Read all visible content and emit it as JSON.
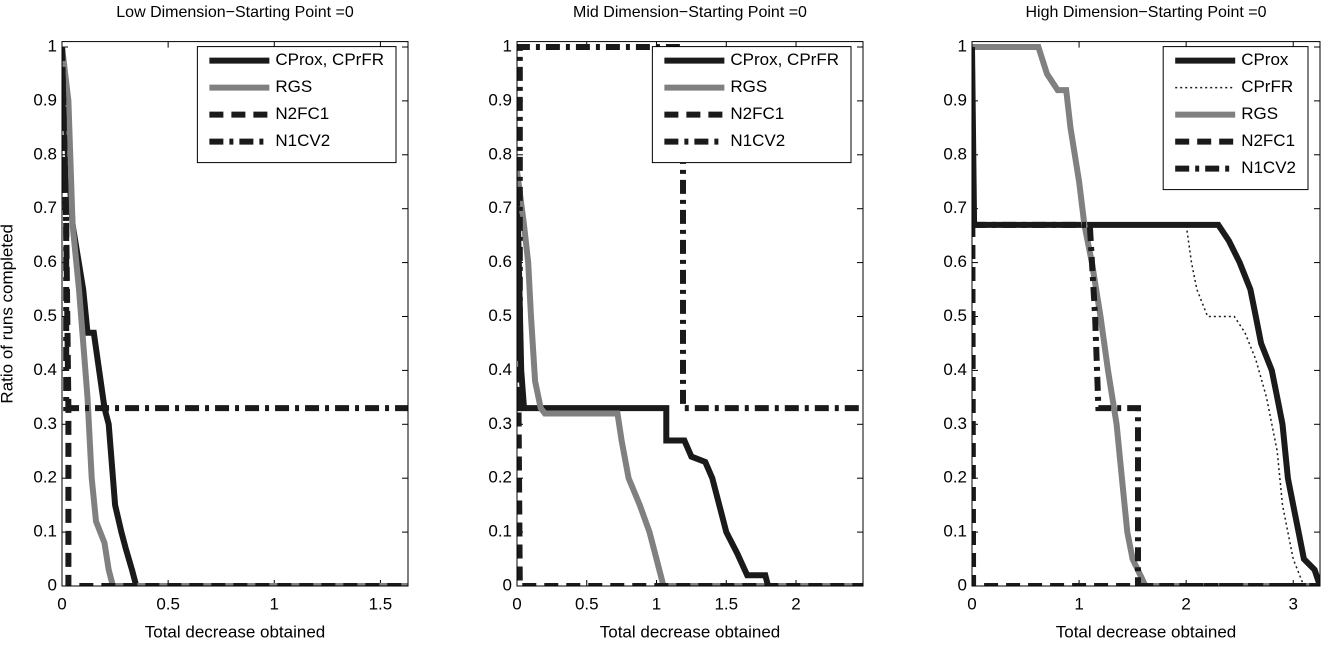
{
  "chart_data": [
    {
      "type": "line",
      "title": "Low Dimension−Starting Point =0",
      "xlabel": "Total decrease obtained",
      "ylabel": "Ratio of runs completed",
      "xlim": [
        0,
        1.63
      ],
      "ylim": [
        0,
        1.01
      ],
      "xticks": [
        0,
        0.5,
        1,
        1.5
      ],
      "yticks": [
        0,
        0.1,
        0.2,
        0.3,
        0.4,
        0.5,
        0.6,
        0.7,
        0.8,
        0.9,
        1
      ],
      "legend": "upper right",
      "series": [
        {
          "name": "CProx, CPrFR",
          "color": "#1a1a1a",
          "style": "solid",
          "x": [
            0,
            0.02,
            0.05,
            0.1,
            0.12,
            0.15,
            0.2,
            0.22,
            0.25,
            0.28,
            0.3,
            0.33,
            0.35,
            1.63
          ],
          "values": [
            1,
            0.85,
            0.67,
            0.55,
            0.47,
            0.47,
            0.33,
            0.3,
            0.15,
            0.1,
            0.07,
            0.03,
            0,
            0
          ]
        },
        {
          "name": "RGS",
          "color": "#808080",
          "style": "solid",
          "x": [
            0,
            0.03,
            0.05,
            0.08,
            0.12,
            0.14,
            0.16,
            0.2,
            0.22,
            0.24,
            1.63
          ],
          "values": [
            1,
            0.9,
            0.67,
            0.55,
            0.35,
            0.2,
            0.12,
            0.08,
            0.03,
            0,
            0
          ]
        },
        {
          "name": "N2FC1",
          "color": "#1a1a1a",
          "style": "dash",
          "x": [
            0,
            0.02,
            0.03,
            0.03,
            1.63
          ],
          "values": [
            1,
            0.67,
            0.33,
            0,
            0
          ]
        },
        {
          "name": "N1CV2",
          "color": "#1a1a1a",
          "style": "dashdot",
          "x": [
            0,
            0.02,
            0.02,
            1.63
          ],
          "values": [
            1,
            0.67,
            0.33,
            0.33
          ]
        }
      ]
    },
    {
      "type": "line",
      "title": "Mid Dimension−Starting Point =0",
      "xlabel": "Total decrease obtained",
      "xlim": [
        0,
        2.48
      ],
      "ylim": [
        0,
        1.01
      ],
      "xticks": [
        0,
        0.5,
        1,
        1.5,
        2
      ],
      "yticks": [
        0,
        0.1,
        0.2,
        0.3,
        0.4,
        0.5,
        0.6,
        0.7,
        0.8,
        0.9,
        1
      ],
      "legend": "upper right",
      "series": [
        {
          "name": "CProx, CPrFR",
          "color": "#1a1a1a",
          "style": "solid",
          "x": [
            0,
            0.03,
            0.05,
            1.07,
            1.07,
            1.2,
            1.25,
            1.35,
            1.4,
            1.45,
            1.5,
            1.58,
            1.65,
            1.78,
            1.8,
            2.48
          ],
          "values": [
            0.75,
            0.4,
            0.33,
            0.33,
            0.27,
            0.27,
            0.24,
            0.23,
            0.2,
            0.15,
            0.1,
            0.06,
            0.02,
            0.02,
            0,
            0
          ]
        },
        {
          "name": "RGS",
          "color": "#808080",
          "style": "solid",
          "x": [
            0,
            0.05,
            0.08,
            0.1,
            0.13,
            0.17,
            0.2,
            0.72,
            0.75,
            0.8,
            0.88,
            0.95,
            1.0,
            1.05,
            2.48
          ],
          "values": [
            0.77,
            0.67,
            0.6,
            0.5,
            0.38,
            0.33,
            0.32,
            0.32,
            0.27,
            0.2,
            0.15,
            0.1,
            0.05,
            0,
            0
          ]
        },
        {
          "name": "N2FC1",
          "color": "#1a1a1a",
          "style": "dash",
          "x": [
            0,
            0.02,
            2.48
          ],
          "values": [
            0.73,
            0,
            0
          ]
        },
        {
          "name": "N1CV2",
          "color": "#1a1a1a",
          "style": "dashdot",
          "x": [
            0,
            0.02,
            0.02,
            1.19,
            1.19,
            2.48
          ],
          "values": [
            0.33,
            0.33,
            1,
            1,
            0.33,
            0.33
          ]
        }
      ]
    },
    {
      "type": "line",
      "title": "High Dimension−Starting Point =0",
      "xlabel": "Total decrease obtained",
      "xlim": [
        0,
        3.25
      ],
      "ylim": [
        0,
        1.01
      ],
      "xticks": [
        0,
        1,
        2,
        3
      ],
      "yticks": [
        0,
        0.1,
        0.2,
        0.3,
        0.4,
        0.5,
        0.6,
        0.7,
        0.8,
        0.9,
        1
      ],
      "legend": "upper right",
      "series": [
        {
          "name": "CProx",
          "color": "#1a1a1a",
          "style": "solid",
          "x": [
            0,
            0.02,
            2.3,
            2.4,
            2.5,
            2.6,
            2.65,
            2.7,
            2.8,
            2.85,
            2.9,
            2.95,
            3.0,
            3.05,
            3.1,
            3.2,
            3.25
          ],
          "values": [
            1,
            0.67,
            0.67,
            0.64,
            0.6,
            0.55,
            0.5,
            0.45,
            0.4,
            0.35,
            0.3,
            0.2,
            0.15,
            0.1,
            0.05,
            0.03,
            0
          ]
        },
        {
          "name": "CPrFR",
          "color": "#1a1a1a",
          "style": "dotted",
          "x": [
            0,
            2.0,
            2.05,
            2.1,
            2.2,
            2.45,
            2.55,
            2.65,
            2.75,
            2.85,
            2.9,
            3.0,
            3.1
          ],
          "values": [
            0.67,
            0.67,
            0.6,
            0.55,
            0.5,
            0.5,
            0.47,
            0.42,
            0.35,
            0.25,
            0.15,
            0.05,
            0
          ]
        },
        {
          "name": "RGS",
          "color": "#808080",
          "style": "solid",
          "x": [
            0,
            0.62,
            0.7,
            0.8,
            0.88,
            0.92,
            1.0,
            1.05,
            1.12,
            1.2,
            1.27,
            1.35,
            1.4,
            1.45,
            1.5,
            1.62,
            3.25
          ],
          "values": [
            1,
            1,
            0.95,
            0.92,
            0.92,
            0.85,
            0.75,
            0.67,
            0.6,
            0.5,
            0.4,
            0.3,
            0.2,
            0.1,
            0.05,
            0,
            0
          ]
        },
        {
          "name": "N2FC1",
          "color": "#1a1a1a",
          "style": "dash",
          "x": [
            0,
            0.01,
            3.25
          ],
          "values": [
            1,
            0,
            0
          ]
        },
        {
          "name": "N1CV2",
          "color": "#1a1a1a",
          "style": "dashdot",
          "x": [
            0,
            1.1,
            1.15,
            1.18,
            1.55,
            1.55,
            3.25
          ],
          "values": [
            0.67,
            0.67,
            0.5,
            0.33,
            0.33,
            0,
            0
          ]
        }
      ]
    }
  ]
}
